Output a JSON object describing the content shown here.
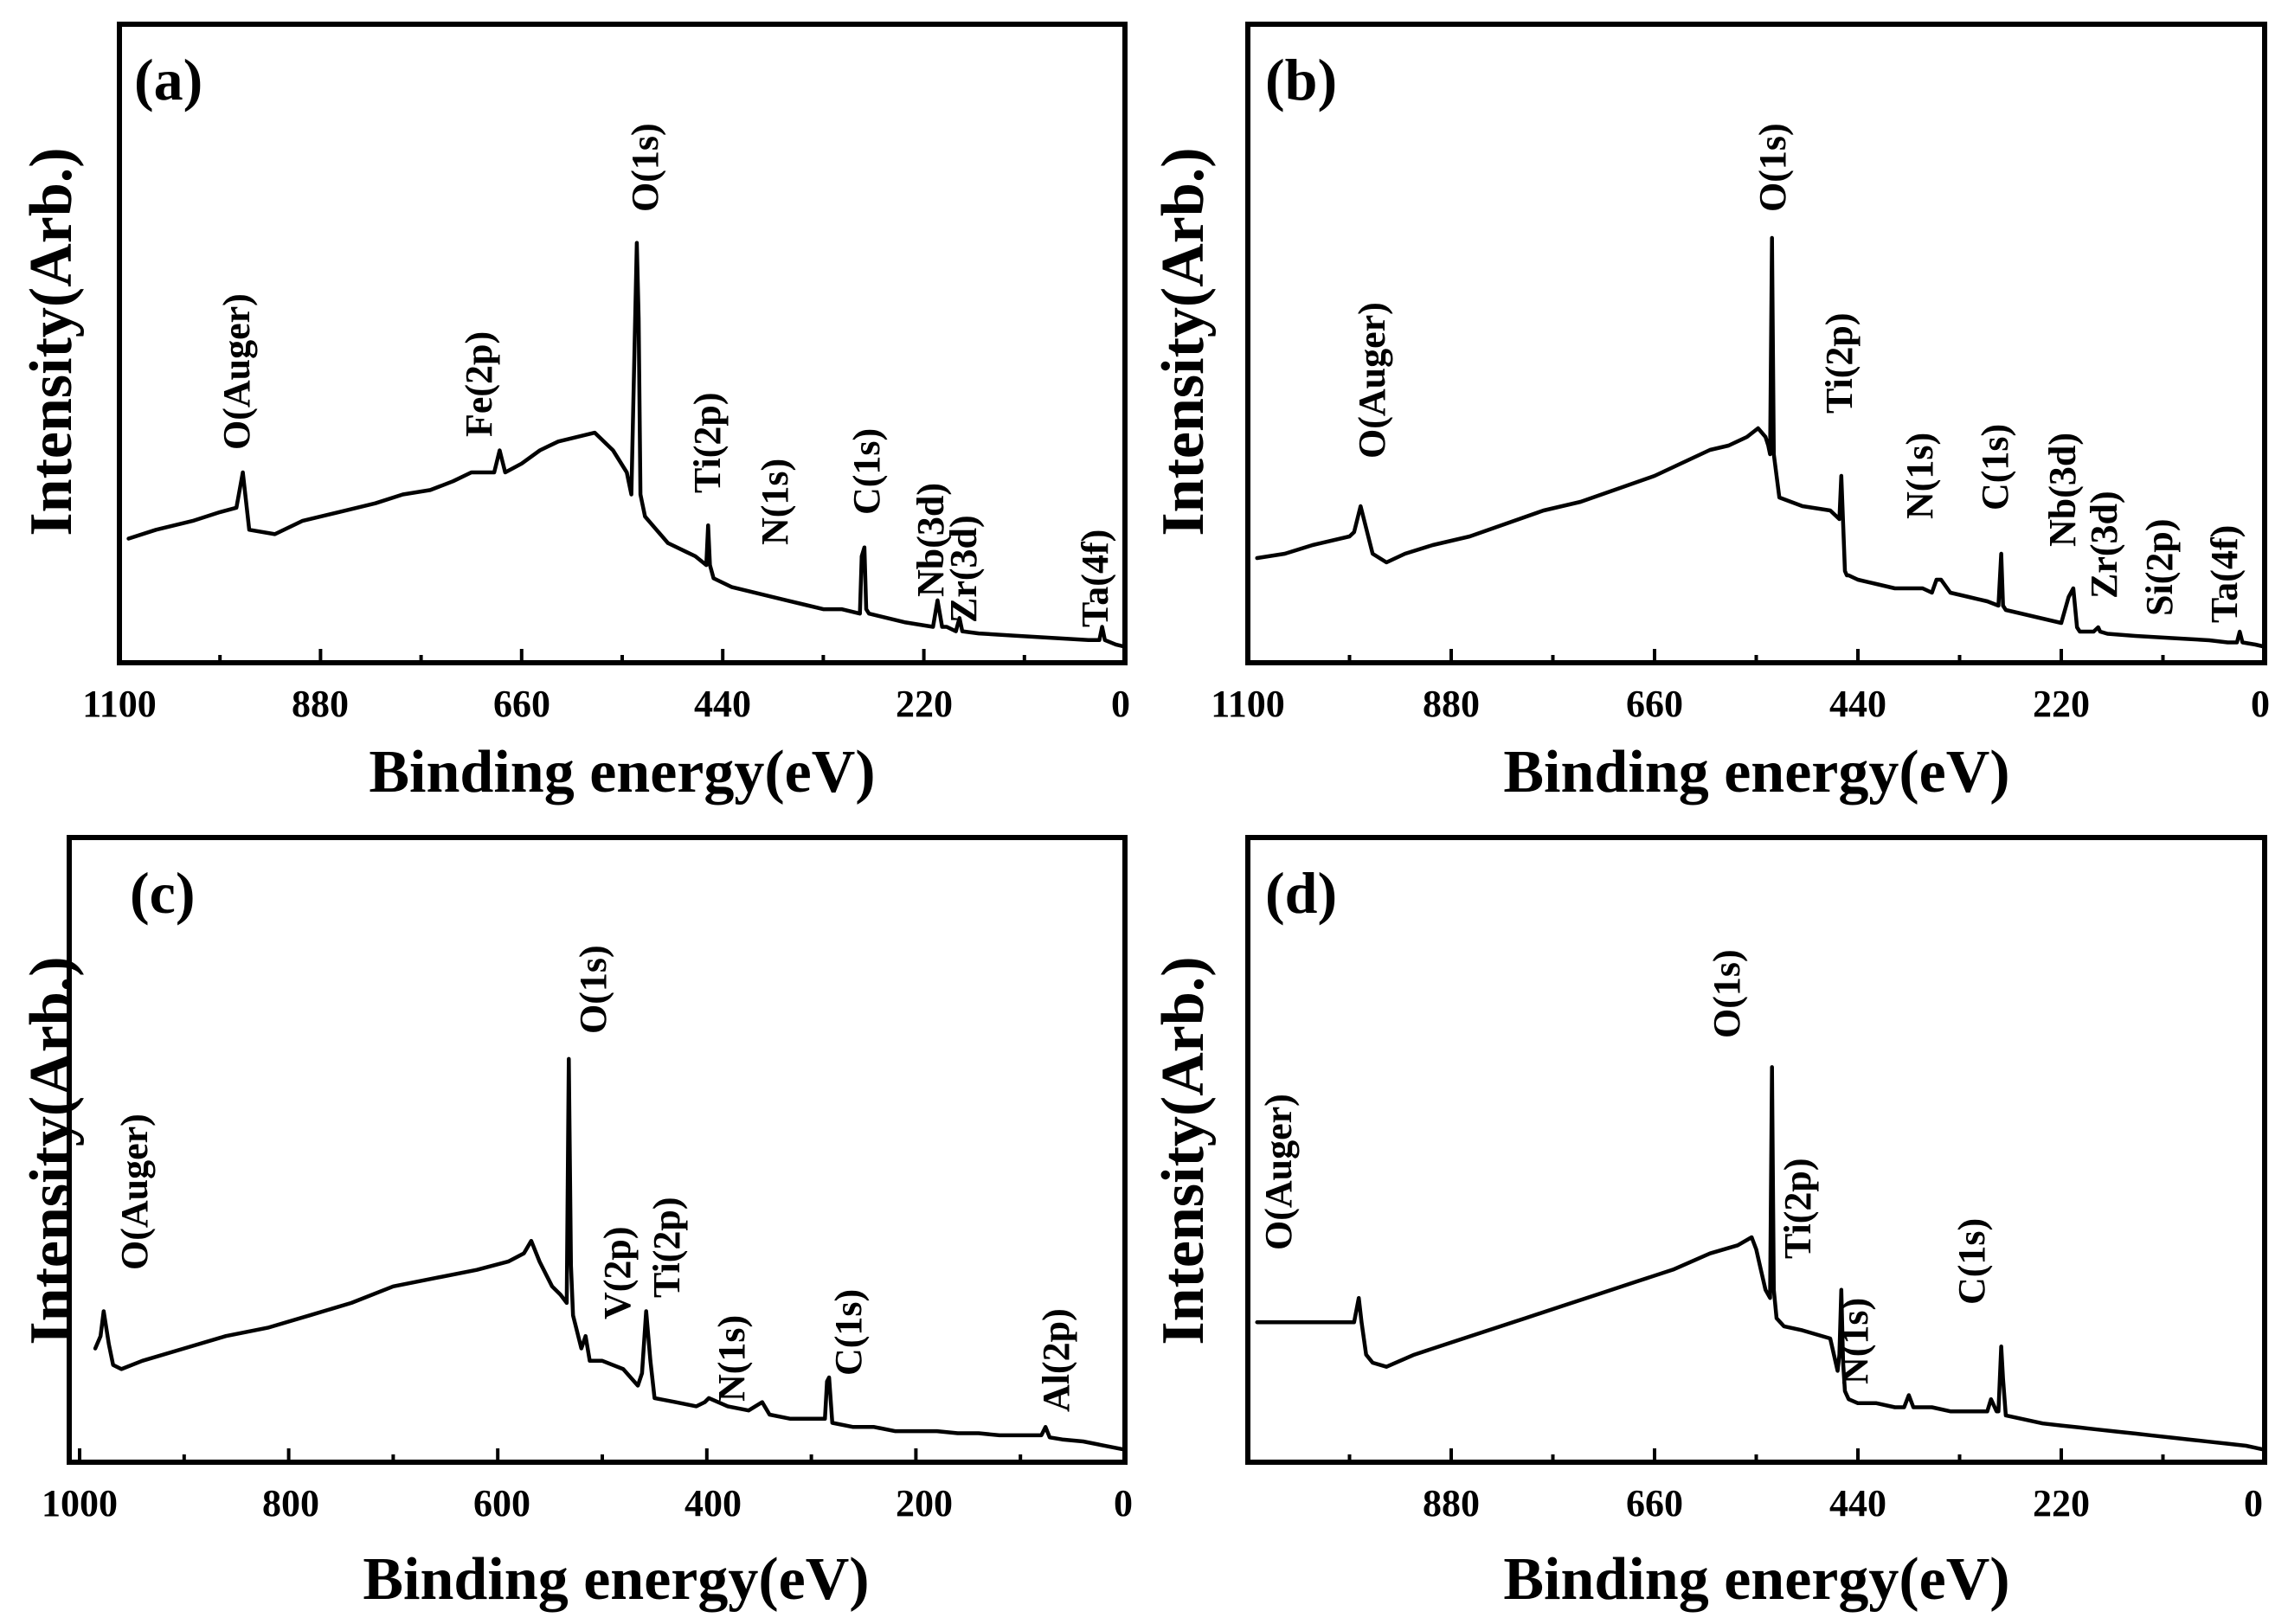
{
  "chart_data": [
    {
      "type": "line",
      "panel_label": "(a)",
      "xlabel": "Binding energy(eV)",
      "ylabel": "Intensity(Arb.)",
      "xlim": [
        1100,
        0
      ],
      "ylim": [
        0,
        100
      ],
      "xticks": [
        1100,
        880,
        660,
        440,
        220,
        0
      ],
      "tick_labels": [
        "1100",
        "880",
        "660",
        "440",
        "220",
        "0"
      ],
      "series": [
        {
          "name": "spectrum",
          "x": [
            1090,
            1060,
            1020,
            990,
            972,
            965,
            958,
            930,
            900,
            860,
            820,
            790,
            760,
            735,
            715,
            700,
            690,
            684,
            678,
            660,
            640,
            620,
            600,
            580,
            560,
            545,
            540,
            534,
            532,
            530,
            528,
            525,
            500,
            480,
            470,
            458,
            456,
            454,
            450,
            430,
            410,
            390,
            370,
            350,
            330,
            310,
            290,
            288,
            285,
            283,
            280,
            260,
            240,
            210,
            205,
            200,
            195,
            185,
            181,
            178,
            160,
            120,
            80,
            40,
            28,
            25,
            22,
            10,
            0
          ],
          "y": [
            25,
            27,
            29,
            31,
            32,
            40,
            27,
            26,
            29,
            31,
            33,
            35,
            36,
            38,
            40,
            40,
            40,
            45,
            40,
            42,
            45,
            47,
            48,
            49,
            45,
            40,
            35,
            92,
            75,
            35,
            33,
            30,
            24,
            22,
            21,
            19,
            28,
            19,
            16,
            14,
            13,
            12,
            11,
            10,
            9,
            9,
            8,
            21,
            23,
            9,
            8,
            7,
            6,
            5,
            11,
            5,
            5,
            4,
            7,
            4,
            3.5,
            3,
            2.5,
            2,
            2,
            5,
            2,
            1,
            0.5
          ]
        }
      ],
      "annotations": [
        "O(Auger)",
        "Fe(2p)",
        "O(1s)",
        "Ti(2p)",
        "N(1s)",
        "C(1s)",
        "Nb(3d)",
        "Zr(3d)",
        "Ta(4f)"
      ]
    },
    {
      "type": "line",
      "panel_label": "(b)",
      "xlabel": "Binding energy(eV)",
      "ylabel": "Intensity(Arb.)",
      "xlim": [
        1100,
        0
      ],
      "ylim": [
        0,
        100
      ],
      "xticks": [
        1100,
        880,
        660,
        440,
        220,
        0
      ],
      "tick_labels": [
        "1100",
        "880",
        "660",
        "440",
        "220",
        "0"
      ],
      "series": [
        {
          "name": "spectrum",
          "x": [
            1090,
            1060,
            1030,
            990,
            985,
            978,
            965,
            950,
            930,
            900,
            860,
            820,
            780,
            740,
            700,
            660,
            630,
            600,
            580,
            560,
            548,
            540,
            537,
            535,
            533,
            531,
            525,
            500,
            470,
            460,
            458,
            456,
            454,
            452,
            450,
            440,
            420,
            400,
            370,
            360,
            355,
            350,
            340,
            320,
            300,
            288,
            285,
            283,
            280,
            260,
            240,
            220,
            212,
            207,
            203,
            200,
            185,
            180,
            178,
            170,
            140,
            100,
            60,
            40,
            30,
            27,
            24,
            10,
            0
          ],
          "y": [
            21,
            22,
            24,
            26,
            27,
            33,
            22,
            20,
            22,
            24,
            26,
            29,
            32,
            34,
            37,
            40,
            43,
            46,
            47,
            49,
            51,
            49,
            47,
            45,
            95,
            45,
            35,
            33,
            32,
            30,
            40,
            29,
            18,
            17,
            17,
            16,
            15,
            14,
            14,
            13,
            16,
            16,
            13,
            12,
            11,
            10,
            22,
            10,
            9,
            8,
            7,
            6,
            12,
            14,
            5,
            4,
            4,
            5,
            4,
            3.5,
            3,
            2.5,
            2,
            1.5,
            1.5,
            4,
            1.5,
            1,
            0.5
          ]
        }
      ],
      "annotations": [
        "O(Auger)",
        "O(1s)",
        "Ti(2p)",
        "N(1s)",
        "C(1s)",
        "Nb(3d)",
        "Zr(3d)",
        "Si(2p)",
        "Ta(4f)"
      ]
    },
    {
      "type": "line",
      "panel_label": "(c)",
      "xlabel": "Binding energy(eV)",
      "ylabel": "Intensity(Arb.)",
      "xlim": [
        1000,
        0
      ],
      "ylim": [
        0,
        100
      ],
      "xticks": [
        1000,
        800,
        600,
        400,
        200,
        0
      ],
      "tick_labels": [
        "1000",
        "800",
        "600",
        "400",
        "200",
        "0"
      ],
      "series": [
        {
          "name": "spectrum",
          "x": [
            985,
            980,
            977,
            972,
            968,
            960,
            940,
            900,
            860,
            820,
            780,
            740,
            700,
            660,
            620,
            590,
            575,
            568,
            560,
            548,
            540,
            534,
            532,
            530,
            528,
            526,
            520,
            516,
            512,
            500,
            480,
            466,
            462,
            458,
            454,
            450,
            430,
            410,
            402,
            398,
            380,
            360,
            347,
            340,
            320,
            300,
            287,
            285,
            283,
            280,
            260,
            240,
            220,
            200,
            180,
            160,
            140,
            120,
            100,
            80,
            76,
            72,
            60,
            40,
            20,
            10,
            0
          ],
          "y": [
            25,
            28,
            34,
            26,
            21,
            20,
            22,
            25,
            28,
            30,
            33,
            36,
            40,
            42,
            44,
            46,
            48,
            51,
            46,
            40,
            38,
            36,
            95,
            45,
            33,
            31,
            25,
            28,
            22,
            22,
            20,
            16,
            19,
            34,
            22,
            13,
            12,
            11,
            12,
            13,
            11,
            10,
            12,
            9,
            8,
            8,
            8,
            17,
            18,
            7,
            6,
            6,
            5,
            5,
            5,
            4.5,
            4.5,
            4,
            4,
            4,
            6,
            3.5,
            3,
            2.5,
            1.5,
            1,
            0.5
          ]
        }
      ],
      "annotations": [
        "O(Auger)",
        "O(1s)",
        "V(2p)",
        "Ti(2p)",
        "N(1s)",
        "C(1s)",
        "Al(2p)"
      ]
    },
    {
      "type": "line",
      "panel_label": "(d)",
      "xlabel": "Binding energy(eV)",
      "ylabel": "Intensity(Arb.)",
      "xlim": [
        1100,
        0
      ],
      "ylim": [
        0,
        100
      ],
      "xticks": [
        880,
        660,
        440,
        220,
        0
      ],
      "tick_labels": [
        "880",
        "660",
        "440",
        "220",
        "0"
      ],
      "series": [
        {
          "name": "spectrum",
          "x": [
            1090,
            985,
            980,
            977,
            972,
            965,
            950,
            920,
            880,
            840,
            800,
            760,
            720,
            680,
            640,
            600,
            570,
            555,
            550,
            545,
            540,
            535,
            533,
            531,
            528,
            520,
            500,
            470,
            462,
            460,
            458,
            456,
            454,
            450,
            440,
            420,
            400,
            390,
            385,
            380,
            360,
            340,
            320,
            300,
            296,
            290,
            288,
            285,
            283,
            280,
            260,
            240,
            220,
            200,
            180,
            160,
            140,
            120,
            100,
            80,
            60,
            40,
            20,
            10,
            0
          ],
          "y": [
            32,
            32,
            38,
            32,
            24,
            22,
            21,
            24,
            27,
            30,
            33,
            36,
            39,
            42,
            45,
            49,
            51,
            53,
            50,
            45,
            40,
            38,
            95,
            40,
            33,
            31,
            30,
            28,
            20,
            24,
            40,
            22,
            15,
            13,
            12,
            12,
            11,
            11,
            14,
            11,
            11,
            10,
            10,
            10,
            13,
            10,
            10,
            26,
            18,
            9,
            8,
            7,
            6.5,
            6,
            5.5,
            5,
            4.5,
            4,
            3.5,
            3,
            2.5,
            2,
            1.5,
            1,
            0.5
          ]
        }
      ],
      "annotations": [
        "O(Auger)",
        "O(1s)",
        "Ti(2p)",
        "N(1s)",
        "C(1s)"
      ]
    }
  ]
}
